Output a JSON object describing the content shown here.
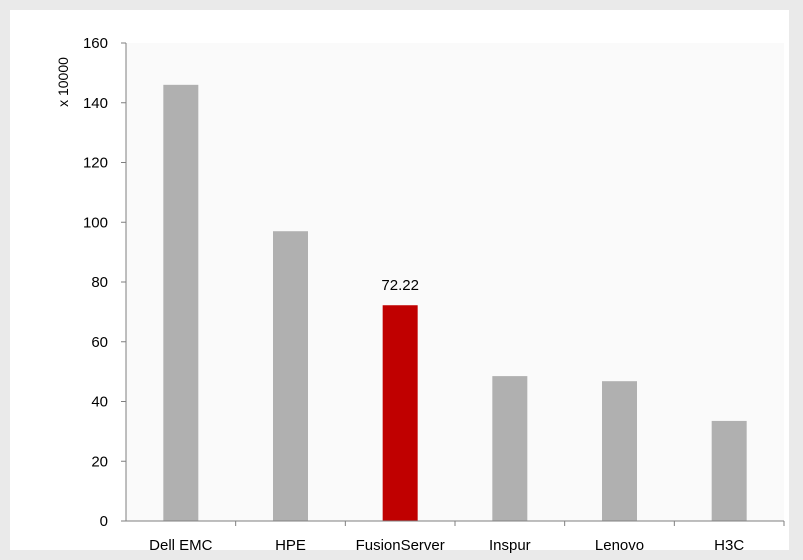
{
  "chart_data": {
    "type": "bar",
    "categories": [
      "Dell EMC",
      "HPE",
      "FusionServer",
      "Inspur",
      "Lenovo",
      "H3C"
    ],
    "values": [
      146,
      97,
      72.22,
      48.5,
      46.8,
      33.5
    ],
    "ylabel": "x 10000",
    "xlabel": "",
    "title": "",
    "ylim": [
      0,
      160
    ],
    "yticks": [
      0,
      20,
      40,
      60,
      80,
      100,
      120,
      140,
      160
    ],
    "data_labels": [
      {
        "category": "FusionServer",
        "text": "72.22"
      }
    ],
    "highlight_index": 2,
    "colors": {
      "bar": "#b0b0b0",
      "highlight": "#c00000",
      "axis": "#7f7f7f"
    },
    "grid": false,
    "legend": "none"
  }
}
